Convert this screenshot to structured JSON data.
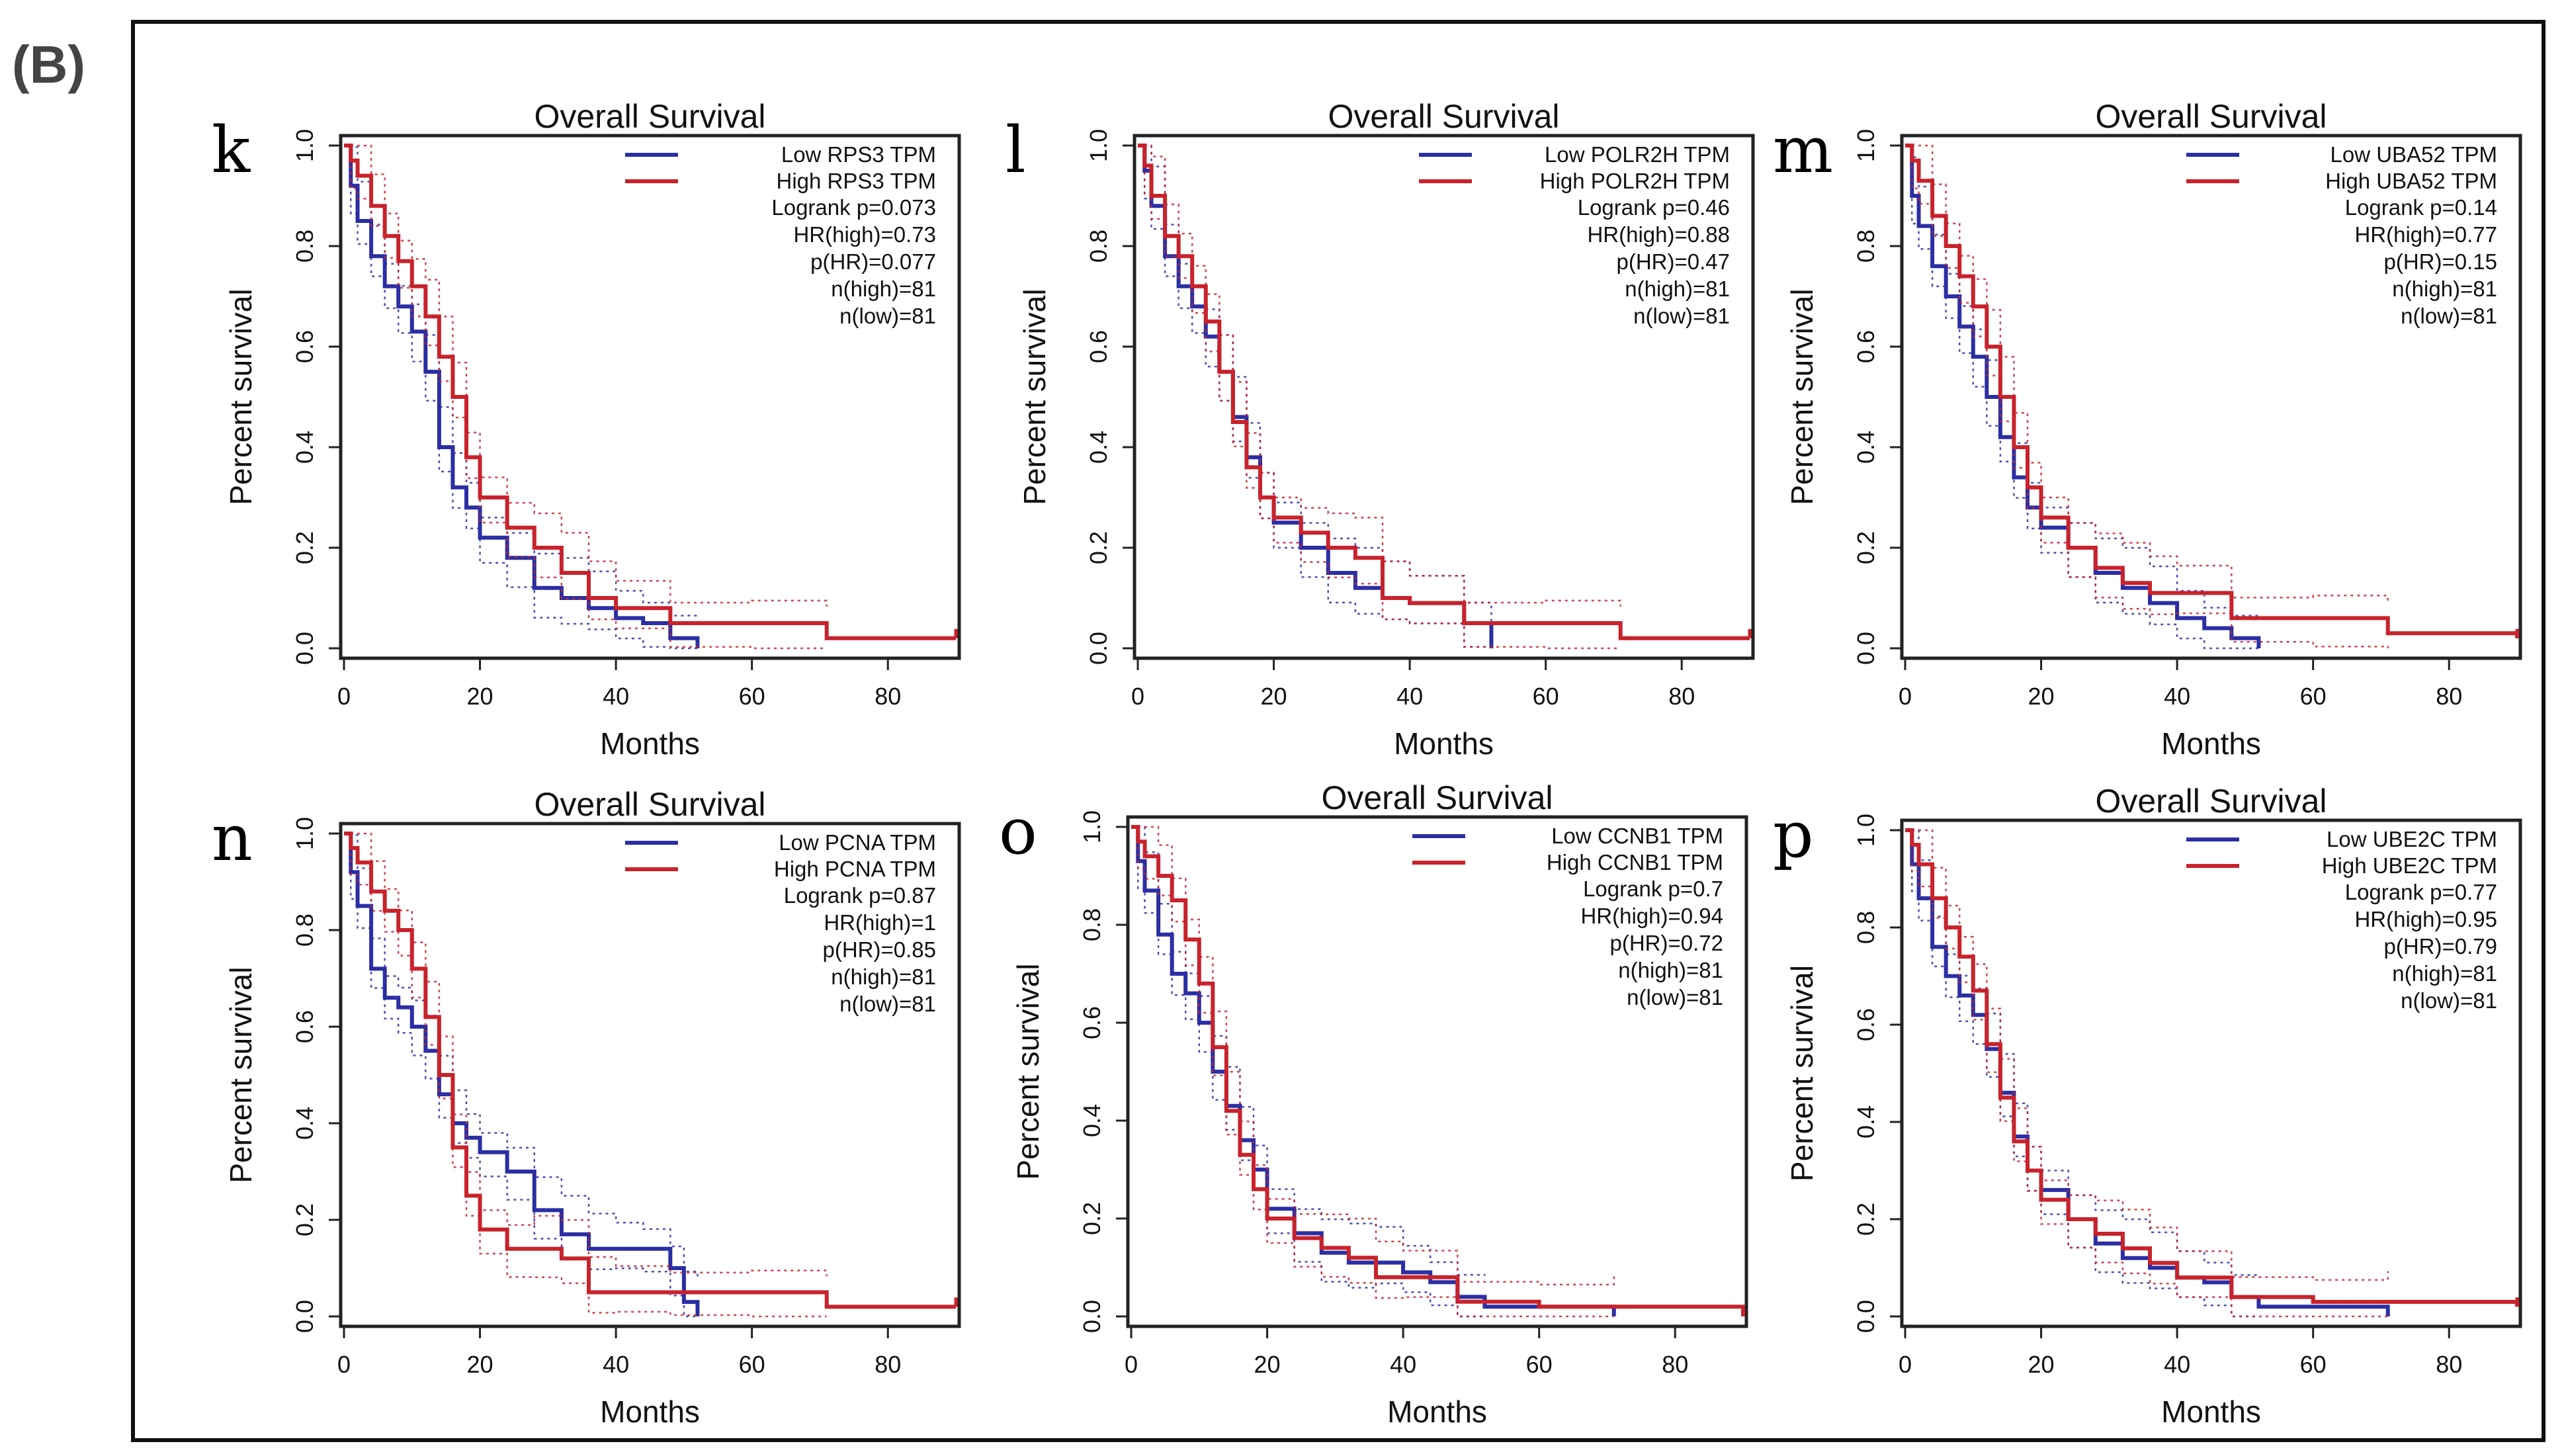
{
  "figure_label": "(B)",
  "colors": {
    "low": "#2b2fa3",
    "high": "#c8232c",
    "axis": "#222222"
  },
  "chart_data": [
    {
      "type": "line",
      "panel": "k",
      "title": "Overall Survival",
      "xlabel": "Months",
      "ylabel": "Percent survival",
      "xlim": [
        0,
        90
      ],
      "ylim": [
        0,
        1
      ],
      "xticks": [
        "0",
        "20",
        "40",
        "60",
        "80"
      ],
      "yticks": [
        "0.0",
        "0.2",
        "0.4",
        "0.6",
        "0.8",
        "1.0"
      ],
      "legend": [
        "Low RPS3 TPM",
        "High RPS3 TPM"
      ],
      "stats": [
        "Logrank p=0.073",
        "HR(high)=0.73",
        "p(HR)=0.077",
        "n(high)=81",
        "n(low)=81"
      ],
      "series": [
        {
          "name": "Low RPS3 TPM",
          "x": [
            0,
            1,
            2,
            4,
            6,
            8,
            10,
            12,
            14,
            16,
            18,
            20,
            24,
            28,
            32,
            36,
            40,
            44,
            48,
            52
          ],
          "y": [
            1.0,
            0.92,
            0.85,
            0.78,
            0.72,
            0.68,
            0.63,
            0.55,
            0.4,
            0.32,
            0.28,
            0.22,
            0.18,
            0.12,
            0.1,
            0.08,
            0.06,
            0.05,
            0.02,
            0.0
          ]
        },
        {
          "name": "High RPS3 TPM",
          "x": [
            0,
            1,
            2,
            4,
            6,
            8,
            10,
            12,
            14,
            16,
            18,
            20,
            24,
            28,
            32,
            36,
            40,
            48,
            60,
            71,
            90
          ],
          "y": [
            1.0,
            0.97,
            0.94,
            0.88,
            0.82,
            0.77,
            0.72,
            0.66,
            0.58,
            0.5,
            0.38,
            0.3,
            0.24,
            0.2,
            0.15,
            0.1,
            0.08,
            0.05,
            0.05,
            0.02,
            0.02
          ]
        }
      ]
    },
    {
      "type": "line",
      "panel": "l",
      "title": "Overall Survival",
      "xlabel": "Months",
      "ylabel": "Percent survival",
      "xlim": [
        0,
        90
      ],
      "ylim": [
        0,
        1
      ],
      "xticks": [
        "0",
        "20",
        "40",
        "60",
        "80"
      ],
      "yticks": [
        "0.0",
        "0.2",
        "0.4",
        "0.6",
        "0.8",
        "1.0"
      ],
      "legend": [
        "Low POLR2H TPM",
        "High POLR2H TPM"
      ],
      "stats": [
        "Logrank p=0.46",
        "HR(high)=0.88",
        "p(HR)=0.47",
        "n(high)=81",
        "n(low)=81"
      ],
      "series": [
        {
          "name": "Low POLR2H TPM",
          "x": [
            0,
            1,
            2,
            4,
            6,
            8,
            10,
            12,
            14,
            16,
            18,
            20,
            24,
            28,
            32,
            36,
            40,
            48,
            52
          ],
          "y": [
            1.0,
            0.95,
            0.88,
            0.78,
            0.72,
            0.68,
            0.62,
            0.55,
            0.46,
            0.38,
            0.3,
            0.25,
            0.2,
            0.15,
            0.12,
            0.1,
            0.09,
            0.05,
            0.0
          ]
        },
        {
          "name": "High POLR2H TPM",
          "x": [
            0,
            1,
            2,
            4,
            6,
            8,
            10,
            12,
            14,
            16,
            18,
            20,
            24,
            28,
            32,
            36,
            40,
            48,
            60,
            71,
            90
          ],
          "y": [
            1.0,
            0.96,
            0.9,
            0.82,
            0.78,
            0.72,
            0.65,
            0.55,
            0.45,
            0.36,
            0.3,
            0.26,
            0.23,
            0.2,
            0.18,
            0.1,
            0.09,
            0.05,
            0.05,
            0.02,
            0.02
          ]
        }
      ]
    },
    {
      "type": "line",
      "panel": "m",
      "title": "Overall Survival",
      "xlabel": "Months",
      "ylabel": "Percent survival",
      "xlim": [
        0,
        90
      ],
      "ylim": [
        0,
        1
      ],
      "xticks": [
        "0",
        "20",
        "40",
        "60",
        "80"
      ],
      "yticks": [
        "0.0",
        "0.2",
        "0.4",
        "0.6",
        "0.8",
        "1.0"
      ],
      "legend": [
        "Low UBA52 TPM",
        "High UBA52 TPM"
      ],
      "stats": [
        "Logrank p=0.14",
        "HR(high)=0.77",
        "p(HR)=0.15",
        "n(high)=81",
        "n(low)=81"
      ],
      "series": [
        {
          "name": "Low UBA52 TPM",
          "x": [
            0,
            1,
            2,
            4,
            6,
            8,
            10,
            12,
            14,
            16,
            18,
            20,
            24,
            28,
            32,
            36,
            40,
            44,
            48,
            52
          ],
          "y": [
            1.0,
            0.9,
            0.84,
            0.76,
            0.7,
            0.64,
            0.58,
            0.5,
            0.42,
            0.34,
            0.28,
            0.24,
            0.2,
            0.15,
            0.12,
            0.09,
            0.06,
            0.04,
            0.02,
            0.0
          ]
        },
        {
          "name": "High UBA52 TPM",
          "x": [
            0,
            1,
            2,
            4,
            6,
            8,
            10,
            12,
            14,
            16,
            18,
            20,
            24,
            28,
            32,
            36,
            40,
            48,
            60,
            71,
            90
          ],
          "y": [
            1.0,
            0.97,
            0.93,
            0.86,
            0.8,
            0.74,
            0.68,
            0.6,
            0.5,
            0.4,
            0.32,
            0.26,
            0.2,
            0.16,
            0.13,
            0.11,
            0.11,
            0.06,
            0.06,
            0.03,
            0.02
          ]
        }
      ]
    },
    {
      "type": "line",
      "panel": "n",
      "title": "Overall Survival",
      "xlabel": "Months",
      "ylabel": "Percent survival",
      "xlim": [
        0,
        90
      ],
      "ylim": [
        0,
        1
      ],
      "xticks": [
        "0",
        "20",
        "40",
        "60",
        "80"
      ],
      "yticks": [
        "0.0",
        "0.2",
        "0.4",
        "0.6",
        "0.8",
        "1.0"
      ],
      "legend": [
        "Low PCNA TPM",
        "High PCNA TPM"
      ],
      "stats": [
        "Logrank p=0.87",
        "HR(high)=1",
        "p(HR)=0.85",
        "n(high)=81",
        "n(low)=81"
      ],
      "series": [
        {
          "name": "Low PCNA TPM",
          "x": [
            0,
            1,
            2,
            4,
            6,
            8,
            10,
            12,
            14,
            16,
            18,
            20,
            24,
            28,
            32,
            36,
            40,
            44,
            48,
            50,
            52
          ],
          "y": [
            1.0,
            0.92,
            0.85,
            0.72,
            0.66,
            0.64,
            0.6,
            0.55,
            0.46,
            0.4,
            0.37,
            0.34,
            0.3,
            0.22,
            0.17,
            0.14,
            0.14,
            0.14,
            0.1,
            0.03,
            0.0
          ]
        },
        {
          "name": "High PCNA TPM",
          "x": [
            0,
            1,
            2,
            4,
            6,
            8,
            10,
            12,
            14,
            16,
            18,
            20,
            24,
            28,
            32,
            36,
            40,
            48,
            60,
            71,
            90
          ],
          "y": [
            1.0,
            0.97,
            0.94,
            0.88,
            0.84,
            0.8,
            0.72,
            0.62,
            0.5,
            0.35,
            0.25,
            0.18,
            0.14,
            0.14,
            0.12,
            0.05,
            0.05,
            0.05,
            0.05,
            0.02,
            0.02
          ]
        }
      ]
    },
    {
      "type": "line",
      "panel": "o",
      "title": "Overall Survival",
      "xlabel": "Months",
      "ylabel": "Percent survival",
      "xlim": [
        0,
        90
      ],
      "ylim": [
        0,
        1
      ],
      "xticks": [
        "0",
        "20",
        "40",
        "60",
        "80"
      ],
      "yticks": [
        "0.0",
        "0.2",
        "0.4",
        "0.6",
        "0.8",
        "1.0"
      ],
      "legend": [
        "Low CCNB1 TPM",
        "High CCNB1 TPM"
      ],
      "stats": [
        "Logrank p=0.7",
        "HR(high)=0.94",
        "p(HR)=0.72",
        "n(high)=81",
        "n(low)=81"
      ],
      "series": [
        {
          "name": "Low CCNB1 TPM",
          "x": [
            0,
            1,
            2,
            4,
            6,
            8,
            10,
            12,
            14,
            16,
            18,
            20,
            24,
            28,
            32,
            36,
            40,
            44,
            48,
            52,
            71
          ],
          "y": [
            1.0,
            0.93,
            0.87,
            0.78,
            0.7,
            0.66,
            0.6,
            0.5,
            0.43,
            0.36,
            0.3,
            0.22,
            0.17,
            0.13,
            0.11,
            0.11,
            0.09,
            0.07,
            0.04,
            0.02,
            0.0
          ]
        },
        {
          "name": "High CCNB1 TPM",
          "x": [
            0,
            1,
            2,
            4,
            6,
            8,
            10,
            12,
            14,
            16,
            18,
            20,
            24,
            28,
            32,
            36,
            40,
            48,
            60,
            71,
            90
          ],
          "y": [
            1.0,
            0.97,
            0.94,
            0.9,
            0.85,
            0.77,
            0.68,
            0.55,
            0.42,
            0.33,
            0.26,
            0.2,
            0.16,
            0.14,
            0.12,
            0.08,
            0.08,
            0.03,
            0.02,
            0.02,
            0.0
          ]
        }
      ]
    },
    {
      "type": "line",
      "panel": "p",
      "title": "Overall Survival",
      "xlabel": "Months",
      "ylabel": "Percent survival",
      "xlim": [
        0,
        90
      ],
      "ylim": [
        0,
        1
      ],
      "xticks": [
        "0",
        "20",
        "40",
        "60",
        "80"
      ],
      "yticks": [
        "0.0",
        "0.2",
        "0.4",
        "0.6",
        "0.8",
        "1.0"
      ],
      "legend": [
        "Low UBE2C TPM",
        "High UBE2C TPM"
      ],
      "stats": [
        "Logrank p=0.77",
        "HR(high)=0.95",
        "p(HR)=0.79",
        "n(high)=81",
        "n(low)=81"
      ],
      "series": [
        {
          "name": "Low UBE2C TPM",
          "x": [
            0,
            1,
            2,
            4,
            6,
            8,
            10,
            12,
            14,
            16,
            18,
            20,
            24,
            28,
            32,
            36,
            40,
            44,
            48,
            52,
            71
          ],
          "y": [
            1.0,
            0.93,
            0.86,
            0.76,
            0.7,
            0.66,
            0.62,
            0.55,
            0.46,
            0.37,
            0.3,
            0.26,
            0.2,
            0.15,
            0.12,
            0.1,
            0.08,
            0.07,
            0.04,
            0.02,
            0.0
          ]
        },
        {
          "name": "High UBE2C TPM",
          "x": [
            0,
            1,
            2,
            4,
            6,
            8,
            10,
            12,
            14,
            16,
            18,
            20,
            24,
            28,
            32,
            36,
            40,
            48,
            60,
            71,
            90
          ],
          "y": [
            1.0,
            0.97,
            0.93,
            0.86,
            0.8,
            0.74,
            0.67,
            0.56,
            0.45,
            0.36,
            0.3,
            0.24,
            0.2,
            0.17,
            0.14,
            0.11,
            0.08,
            0.04,
            0.03,
            0.03,
            0.02
          ]
        }
      ]
    }
  ]
}
